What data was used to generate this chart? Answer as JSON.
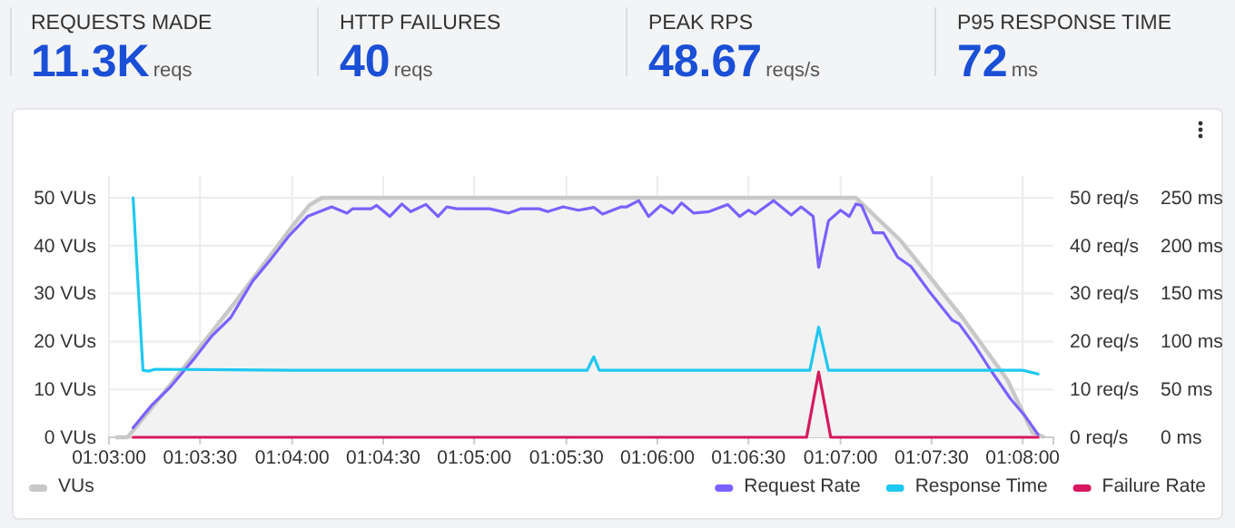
{
  "chart_data": {
    "type": "line",
    "annotations": [
      "REQUESTS MADE",
      "11.3K",
      "reqs",
      "HTTP FAILURES",
      "40",
      "reqs",
      "PEAK RPS",
      "48.67",
      "reqs/s",
      "P95 RESPONSE TIME",
      "72",
      "ms"
    ],
    "xlim": [
      1.05,
      1.1361
    ],
    "xticks": [
      {
        "value": 1.05,
        "label": "01:03:00"
      },
      {
        "value": 1.0583,
        "label": "01:03:30"
      },
      {
        "value": 1.0667,
        "label": "01:04:00"
      },
      {
        "value": 1.075,
        "label": "01:04:30"
      },
      {
        "value": 1.0833,
        "label": "01:05:00"
      },
      {
        "value": 1.0917,
        "label": "01:05:30"
      },
      {
        "value": 1.1,
        "label": "01:06:00"
      },
      {
        "value": 1.1083,
        "label": "01:06:30"
      },
      {
        "value": 1.1167,
        "label": "01:07:00"
      },
      {
        "value": 1.125,
        "label": "01:07:30"
      },
      {
        "value": 1.1333,
        "label": "01:08:00"
      }
    ],
    "ylim": [
      0,
      50
    ],
    "yticks": [
      {
        "value": 0,
        "label": "0 VUs"
      },
      {
        "value": 10,
        "label": "10 VUs"
      },
      {
        "value": 20,
        "label": "20 VUs"
      },
      {
        "value": 30,
        "label": "30 VUs"
      },
      {
        "value": 40,
        "label": "40 VUs"
      },
      {
        "value": 50,
        "label": "50 VUs"
      }
    ],
    "y2lim": [
      0,
      50
    ],
    "y2ticks": [
      {
        "value": 0,
        "label": "0 req/s"
      },
      {
        "value": 10,
        "label": "10 req/s"
      },
      {
        "value": 20,
        "label": "20 req/s"
      },
      {
        "value": 30,
        "label": "30 req/s"
      },
      {
        "value": 40,
        "label": "40 req/s"
      },
      {
        "value": 50,
        "label": "50 req/s"
      }
    ],
    "y3lim": [
      0,
      250
    ],
    "y3ticks": [
      {
        "value": 0,
        "label": "0 ms"
      },
      {
        "value": 50,
        "label": "50 ms"
      },
      {
        "value": 100,
        "label": "100 ms"
      },
      {
        "value": 150,
        "label": "150 ms"
      },
      {
        "value": 200,
        "label": "200 ms"
      },
      {
        "value": 250,
        "label": "250 ms"
      }
    ],
    "grid": true,
    "legend": "bottom",
    "series": [
      {
        "name": "VUs",
        "type": "area",
        "color": "#c8c8c8",
        "axis": "y",
        "x": [
          1.0506,
          1.0517,
          1.0556,
          1.0611,
          1.0667,
          1.0683,
          1.0694,
          1.1181,
          1.1222,
          1.1278,
          1.1319,
          1.1342,
          1.1353
        ],
        "values": [
          0,
          0,
          11,
          27,
          44,
          48.5,
          50,
          50,
          41,
          25,
          12,
          1,
          0
        ]
      },
      {
        "name": "Request Rate",
        "color": "#7b61ff",
        "axis": "y2",
        "x": [
          1.0522,
          1.0539,
          1.0556,
          1.0578,
          1.0594,
          1.0611,
          1.0631,
          1.0647,
          1.0664,
          1.0681,
          1.0703,
          1.0717,
          1.0722,
          1.0739,
          1.0744,
          1.0756,
          1.0767,
          1.0775,
          1.0789,
          1.08,
          1.0808,
          1.0817,
          1.0847,
          1.0864,
          1.0875,
          1.0892,
          1.09,
          1.0914,
          1.0928,
          1.0942,
          1.095,
          1.0967,
          1.0972,
          1.0983,
          1.0992,
          1.1003,
          1.1014,
          1.1022,
          1.1033,
          1.1047,
          1.1064,
          1.1075,
          1.1083,
          1.1089,
          1.1106,
          1.1122,
          1.1131,
          1.1142,
          1.1147,
          1.1156,
          1.1167,
          1.1175,
          1.1181,
          1.1186,
          1.1197,
          1.1206,
          1.1219,
          1.1231,
          1.1247,
          1.1269,
          1.1275,
          1.1289,
          1.1303,
          1.1322,
          1.1336,
          1.1347
        ],
        "values": [
          2.0,
          6.7,
          10.5,
          16.5,
          21.2,
          25.0,
          32.6,
          37.0,
          42.0,
          46.1,
          48.1,
          46.8,
          47.7,
          47.7,
          48.4,
          46.1,
          48.7,
          47.1,
          48.6,
          46.1,
          48.1,
          47.7,
          47.7,
          46.8,
          47.7,
          47.7,
          47.1,
          48.1,
          47.4,
          48.0,
          46.6,
          48.1,
          48.1,
          49.4,
          46.1,
          48.4,
          46.8,
          48.9,
          46.8,
          47.1,
          48.6,
          46.1,
          47.4,
          46.6,
          49.4,
          46.4,
          48.1,
          46.1,
          35.5,
          45.2,
          47.4,
          46.1,
          48.7,
          48.4,
          42.7,
          42.7,
          37.6,
          35.7,
          30.7,
          24.4,
          23.7,
          19.3,
          14.3,
          8.0,
          4.2,
          0.6
        ]
      },
      {
        "name": "Response Time",
        "color": "#1fc8f0",
        "axis": "y3",
        "x": [
          1.0522,
          1.0531,
          1.0536,
          1.0542,
          1.0667,
          1.0936,
          1.0942,
          1.0947,
          1.1139,
          1.1147,
          1.1156,
          1.1306,
          1.1333,
          1.1347
        ],
        "values": [
          250,
          70,
          69,
          71,
          70,
          70,
          84,
          70,
          70,
          115,
          70,
          70,
          70,
          66
        ]
      },
      {
        "name": "Failure Rate",
        "color": "#d6195e",
        "axis": "y2",
        "x": [
          1.0522,
          1.1136,
          1.1147,
          1.1158,
          1.1347
        ],
        "values": [
          0,
          0,
          13.6,
          0,
          0
        ]
      }
    ]
  }
}
